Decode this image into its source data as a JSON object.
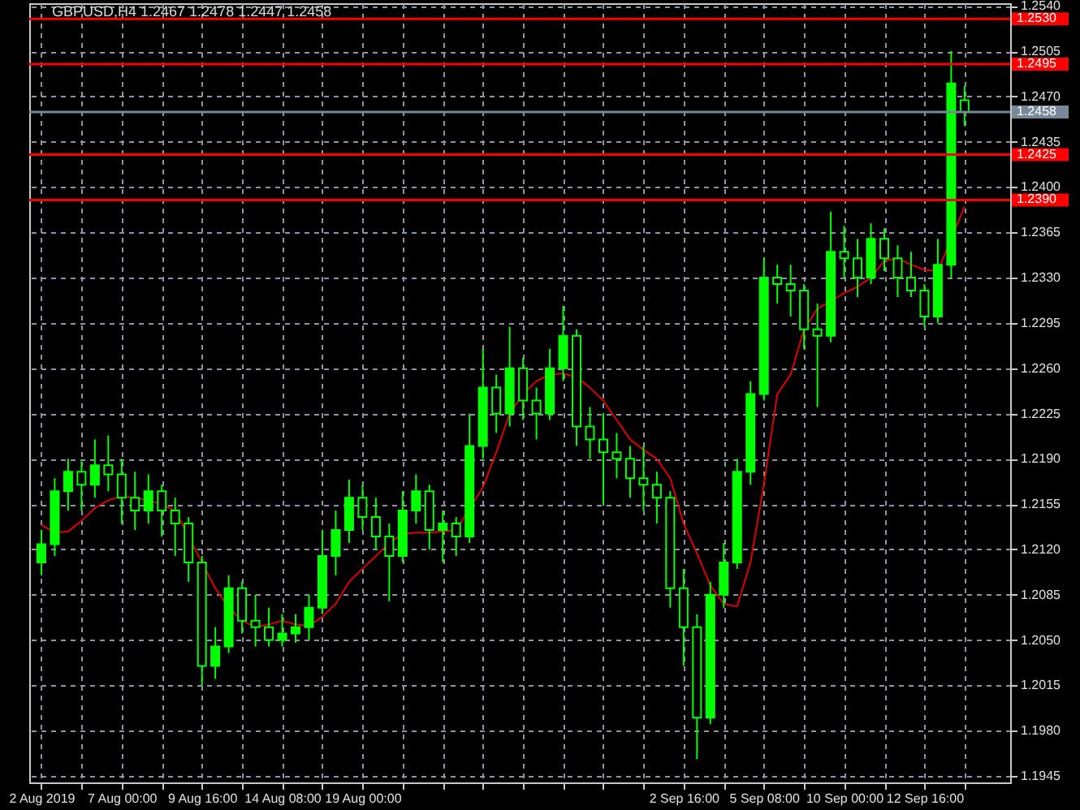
{
  "chart_data": {
    "type": "candlestick",
    "title": "GBPUSD,H4  1.2467 1.2478 1.2447 1.2458",
    "color": "#00ff00",
    "categories": [
      "2 Aug 2019",
      null,
      null,
      null,
      null,
      null,
      "7 Aug 00:00",
      null,
      null,
      null,
      null,
      null,
      "9 Aug 16:00",
      null,
      null,
      null,
      null,
      null,
      "14 Aug 08:00",
      null,
      null,
      null,
      null,
      null,
      "19 Aug 00:00",
      null,
      null,
      null,
      null,
      null,
      null,
      null,
      null,
      null,
      null,
      null,
      null,
      null,
      null,
      null,
      null,
      null,
      null,
      null,
      null,
      null,
      null,
      null,
      "2 Sep 16:00",
      null,
      null,
      null,
      null,
      null,
      "5 Sep 08:00",
      null,
      null,
      null,
      null,
      null,
      "10 Sep 00:00",
      null,
      null,
      null,
      null,
      null,
      "12 Sep 16:00",
      null,
      null,
      null
    ],
    "ohlc": [
      [
        1.211,
        1.2135,
        1.21,
        1.2124
      ],
      [
        1.2124,
        1.2175,
        1.2115,
        1.2165
      ],
      [
        1.2165,
        1.219,
        1.215,
        1.218
      ],
      [
        1.218,
        1.2188,
        1.215,
        1.217
      ],
      [
        1.217,
        1.2205,
        1.216,
        1.2185
      ],
      [
        1.2185,
        1.2208,
        1.2165,
        1.2178
      ],
      [
        1.2178,
        1.219,
        1.214,
        1.216
      ],
      [
        1.216,
        1.218,
        1.2135,
        1.215
      ],
      [
        1.215,
        1.2178,
        1.214,
        1.2165
      ],
      [
        1.2165,
        1.217,
        1.213,
        1.215
      ],
      [
        1.215,
        1.216,
        1.2115,
        1.214
      ],
      [
        1.214,
        1.2145,
        1.2095,
        1.211
      ],
      [
        1.211,
        1.2115,
        1.2015,
        1.203
      ],
      [
        1.203,
        1.206,
        1.202,
        1.2045
      ],
      [
        1.2045,
        1.21,
        1.204,
        1.209
      ],
      [
        1.209,
        1.2095,
        1.2055,
        1.2065
      ],
      [
        1.2065,
        1.2085,
        1.2045,
        1.206
      ],
      [
        1.206,
        1.2075,
        1.2045,
        1.205
      ],
      [
        1.205,
        1.207,
        1.2045,
        1.2055
      ],
      [
        1.2055,
        1.207,
        1.2048,
        1.206
      ],
      [
        1.206,
        1.2085,
        1.205,
        1.2075
      ],
      [
        1.2075,
        1.2135,
        1.207,
        1.2115
      ],
      [
        1.2115,
        1.215,
        1.21,
        1.2135
      ],
      [
        1.2135,
        1.2174,
        1.2125,
        1.216
      ],
      [
        1.216,
        1.217,
        1.2135,
        1.2145
      ],
      [
        1.2145,
        1.216,
        1.212,
        1.213
      ],
      [
        1.213,
        1.214,
        1.208,
        1.2115
      ],
      [
        1.2115,
        1.2165,
        1.211,
        1.215
      ],
      [
        1.215,
        1.2178,
        1.214,
        1.2165
      ],
      [
        1.2165,
        1.217,
        1.212,
        1.2135
      ],
      [
        1.2135,
        1.215,
        1.211,
        1.214
      ],
      [
        1.214,
        1.2145,
        1.2115,
        1.213
      ],
      [
        1.213,
        1.2225,
        1.2125,
        1.22
      ],
      [
        1.22,
        1.2275,
        1.219,
        1.2245
      ],
      [
        1.2245,
        1.2255,
        1.221,
        1.2225
      ],
      [
        1.2225,
        1.2292,
        1.2215,
        1.226
      ],
      [
        1.226,
        1.2268,
        1.222,
        1.2235
      ],
      [
        1.2235,
        1.2245,
        1.2205,
        1.2225
      ],
      [
        1.2225,
        1.2275,
        1.222,
        1.226
      ],
      [
        1.226,
        1.2308,
        1.225,
        1.2285
      ],
      [
        1.2285,
        1.229,
        1.22,
        1.2215
      ],
      [
        1.2215,
        1.223,
        1.219,
        1.2205
      ],
      [
        1.2205,
        1.2225,
        1.2155,
        1.2195
      ],
      [
        1.2195,
        1.221,
        1.2175,
        1.219
      ],
      [
        1.219,
        1.22,
        1.216,
        1.2175
      ],
      [
        1.2175,
        1.22,
        1.215,
        1.217
      ],
      [
        1.217,
        1.218,
        1.214,
        1.216
      ],
      [
        1.216,
        1.2165,
        1.2075,
        1.209
      ],
      [
        1.209,
        1.2105,
        1.203,
        1.206
      ],
      [
        1.206,
        1.207,
        1.1958,
        1.199
      ],
      [
        1.199,
        1.2095,
        1.1985,
        1.2085
      ],
      [
        1.2085,
        1.2125,
        1.2075,
        1.211
      ],
      [
        1.211,
        1.219,
        1.2105,
        1.218
      ],
      [
        1.218,
        1.225,
        1.217,
        1.224
      ],
      [
        1.224,
        1.2345,
        1.2235,
        1.233
      ],
      [
        1.233,
        1.234,
        1.231,
        1.2325
      ],
      [
        1.2325,
        1.234,
        1.23,
        1.232
      ],
      [
        1.232,
        1.2325,
        1.2275,
        1.229
      ],
      [
        1.229,
        1.231,
        1.223,
        1.2285
      ],
      [
        1.2285,
        1.2381,
        1.228,
        1.235
      ],
      [
        1.235,
        1.237,
        1.233,
        1.2345
      ],
      [
        1.2345,
        1.236,
        1.2315,
        1.233
      ],
      [
        1.233,
        1.2372,
        1.2325,
        1.236
      ],
      [
        1.236,
        1.2368,
        1.2335,
        1.2345
      ],
      [
        1.2345,
        1.2355,
        1.2315,
        1.233
      ],
      [
        1.233,
        1.235,
        1.2315,
        1.232
      ],
      [
        1.232,
        1.2325,
        1.2292,
        1.23
      ],
      [
        1.23,
        1.236,
        1.2295,
        1.234
      ],
      [
        1.234,
        1.2505,
        1.233,
        1.248
      ],
      [
        1.2467,
        1.2478,
        1.2447,
        1.2458
      ]
    ],
    "series": [
      {
        "type": "line",
        "color": "#e00000",
        "values": [
          1.2139,
          1.2133,
          1.2134,
          1.2142,
          1.2152,
          1.2158,
          1.2161,
          1.216,
          1.2158,
          1.2155,
          1.215,
          null,
          1.211,
          1.209,
          1.2075,
          1.2065,
          1.206,
          1.2062,
          1.2065,
          1.2062,
          1.2061,
          1.2068,
          1.2078,
          1.2095,
          1.2105,
          1.2115,
          1.2125,
          1.2132,
          1.2133,
          1.2133,
          1.2134,
          1.2135,
          null,
          1.2168,
          1.2195,
          1.2225,
          1.224,
          1.225,
          1.2255,
          1.2256,
          1.2253,
          1.2245,
          1.2235,
          1.222,
          1.2205,
          1.2197,
          1.219,
          1.2175,
          1.214,
          1.2117,
          1.2092,
          1.2078,
          1.2076,
          1.211,
          1.217,
          1.224,
          1.2255,
          1.229,
          1.2306,
          1.2312,
          1.2318,
          1.2323,
          1.233,
          1.2343,
          1.2345,
          1.234,
          1.2336,
          1.2335,
          null,
          1.2385
        ]
      }
    ],
    "ylim": [
      1.194,
      1.2542
    ],
    "yticks": [
      {
        "value": 1.254,
        "label": "1.2540"
      },
      1.2505,
      {
        "value": 1.247,
        "label": "1.2470"
      },
      1.2435,
      {
        "value": 1.24,
        "label": "1.2400"
      },
      1.2365,
      {
        "value": 1.233,
        "label": "1.2330"
      },
      1.2295,
      {
        "value": 1.226,
        "label": "1.2260"
      },
      1.2225,
      {
        "value": 1.219,
        "label": "1.2190"
      },
      1.2155,
      {
        "value": 1.212,
        "label": "1.2120"
      },
      1.2085,
      {
        "value": 1.205,
        "label": "1.2050"
      },
      1.2015,
      {
        "value": 1.198,
        "label": "1.1980"
      },
      1.1945
    ],
    "ref_lines": [
      {
        "axis": "y",
        "value": 1.253,
        "label": "1.2530",
        "color": "#ff0000"
      },
      {
        "axis": "y",
        "value": 1.2495,
        "label": "1.2495",
        "color": "#ff0000"
      },
      {
        "axis": "y",
        "value": 1.2458,
        "label": "1.2458",
        "color": "#778899"
      },
      {
        "axis": "y",
        "value": 1.2425,
        "label": "1.2425",
        "color": "#ff0000"
      },
      {
        "axis": "y",
        "value": 1.239,
        "label": "1.2390",
        "color": "#ff0000"
      }
    ],
    "grid": true
  }
}
